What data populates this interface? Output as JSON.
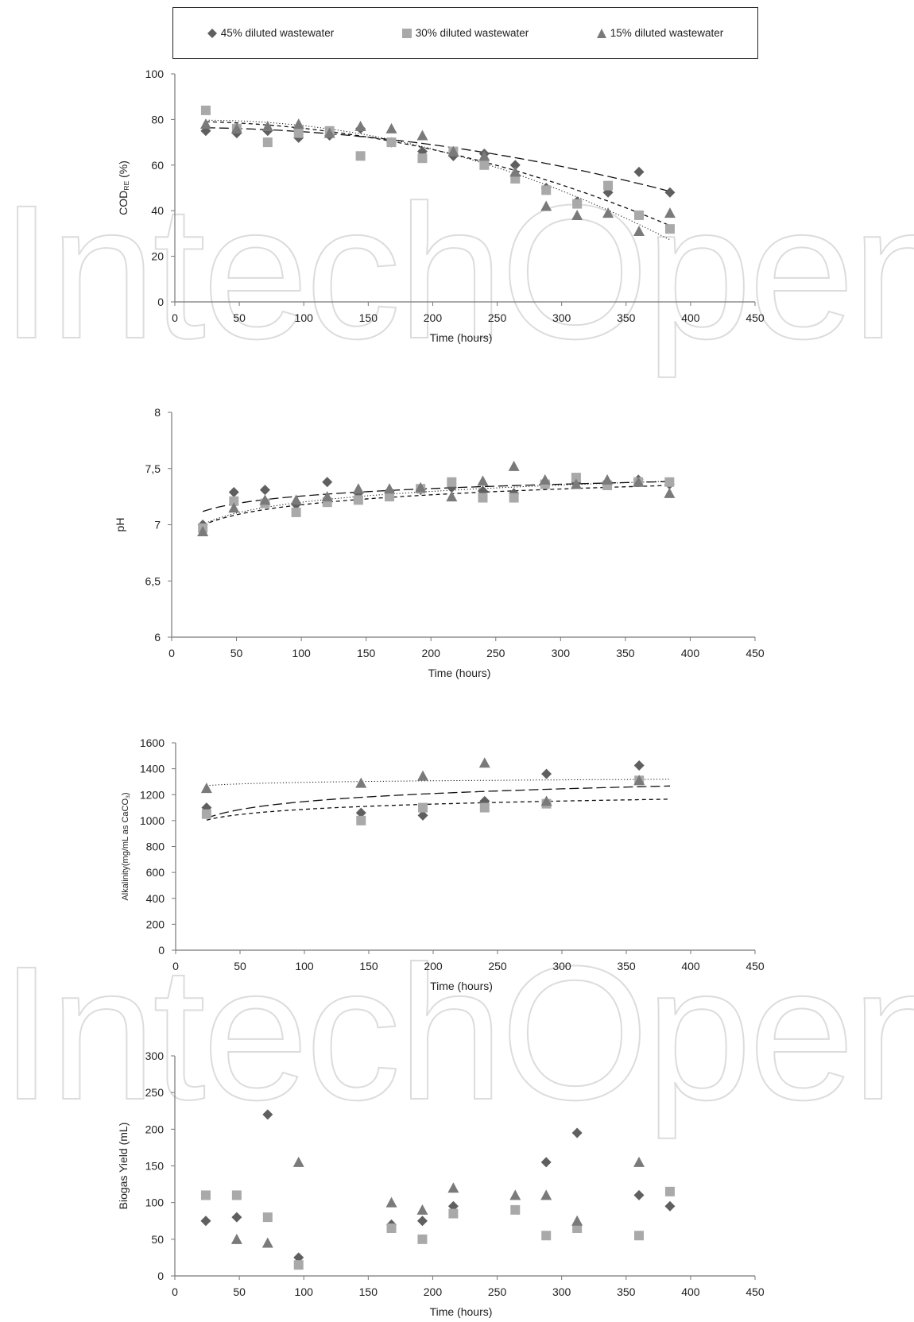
{
  "legend": {
    "items": [
      {
        "label": "45% diluted wastewater",
        "marker": "diamond",
        "color": "#5f5f5f"
      },
      {
        "label": "30% diluted wastewater",
        "marker": "square",
        "color": "#a9a9a9"
      },
      {
        "label": "15% diluted wastewater",
        "marker": "triangle",
        "color": "#7a7a7a"
      }
    ]
  },
  "watermark": "IntechOpen",
  "chart_data": [
    {
      "type": "scatter",
      "xlabel": "Time (hours)",
      "ylabel": "COD",
      "ylabel_sub": "RE",
      "ylabel_suffix": " (%)",
      "xlim": [
        0,
        450
      ],
      "ylim": [
        0,
        100
      ],
      "xticks": [
        0,
        50,
        100,
        150,
        200,
        250,
        300,
        350,
        400,
        450
      ],
      "yticks": [
        0,
        20,
        40,
        60,
        80,
        100
      ],
      "ytick_labels": [
        "0",
        "20",
        "40",
        "60",
        "80",
        "100"
      ],
      "series": [
        {
          "name": "45% diluted wastewater",
          "x": [
            24,
            48,
            72,
            96,
            120,
            144,
            168,
            192,
            216,
            240,
            264,
            288,
            312,
            336,
            360,
            384
          ],
          "y": [
            75,
            74,
            75,
            72,
            73,
            76,
            70,
            66,
            64,
            65,
            60,
            50,
            44,
            48,
            57,
            48
          ]
        },
        {
          "name": "30% diluted wastewater",
          "x": [
            24,
            48,
            72,
            96,
            120,
            144,
            168,
            192,
            216,
            240,
            264,
            288,
            312,
            336,
            360,
            384
          ],
          "y": [
            84,
            76,
            70,
            74,
            75,
            64,
            70,
            63,
            66,
            60,
            54,
            49,
            43,
            51,
            38,
            32
          ]
        },
        {
          "name": "15% diluted wastewater",
          "x": [
            24,
            48,
            72,
            96,
            120,
            144,
            168,
            192,
            216,
            240,
            264,
            288,
            312,
            336,
            360,
            384
          ],
          "y": [
            78,
            76,
            77,
            78,
            74,
            77,
            76,
            73,
            66,
            64,
            57,
            42,
            38,
            39,
            31,
            39
          ]
        }
      ],
      "trendlines": [
        {
          "series": "45% diluted wastewater",
          "style": "long-dash",
          "coef": [
            -0.00019,
            0.0,
            76.5
          ]
        },
        {
          "series": "30% diluted wastewater",
          "style": "short-dash",
          "coef": [
            -0.00031,
            0.0,
            79.2
          ]
        },
        {
          "series": "15% diluted wastewater",
          "style": "dotted",
          "coef": [
            -0.0004,
            0.0175,
            79.5
          ]
        }
      ]
    },
    {
      "type": "scatter",
      "xlabel": "Time (hours)",
      "ylabel": "pH",
      "xlim": [
        0,
        450
      ],
      "ylim": [
        6,
        8
      ],
      "xticks": [
        0,
        50,
        100,
        150,
        200,
        250,
        300,
        350,
        400,
        450
      ],
      "yticks": [
        6,
        6.5,
        7,
        7.5,
        8
      ],
      "ytick_labels": [
        "6",
        "6,5",
        "7",
        "7,5",
        "8"
      ],
      "series": [
        {
          "name": "45% diluted wastewater",
          "x": [
            24,
            48,
            72,
            96,
            120,
            144,
            168,
            192,
            216,
            240,
            264,
            288,
            312,
            336,
            360,
            384
          ],
          "y": [
            7.0,
            7.29,
            7.31,
            7.18,
            7.38,
            7.28,
            7.3,
            7.31,
            7.33,
            7.3,
            7.28,
            7.38,
            7.38,
            7.38,
            7.4,
            7.36
          ]
        },
        {
          "name": "30% diluted wastewater",
          "x": [
            24,
            48,
            72,
            96,
            120,
            144,
            168,
            192,
            216,
            240,
            264,
            288,
            312,
            336,
            360,
            384
          ],
          "y": [
            6.97,
            7.21,
            7.19,
            7.11,
            7.2,
            7.22,
            7.25,
            7.32,
            7.38,
            7.24,
            7.24,
            7.36,
            7.42,
            7.35,
            7.38,
            7.38
          ]
        },
        {
          "name": "15% diluted wastewater",
          "x": [
            24,
            48,
            72,
            96,
            120,
            144,
            168,
            192,
            216,
            240,
            264,
            288,
            312,
            336,
            360,
            384
          ],
          "y": [
            6.94,
            7.15,
            7.22,
            7.22,
            7.25,
            7.32,
            7.32,
            7.33,
            7.25,
            7.39,
            7.52,
            7.4,
            7.36,
            7.4,
            7.38,
            7.28
          ]
        }
      ],
      "trendlines": [
        {
          "series": "45% diluted wastewater",
          "style": "long-dash",
          "log": [
            0.096,
            6.813
          ]
        },
        {
          "series": "30% diluted wastewater",
          "style": "short-dash",
          "log": [
            0.128,
            6.588
          ]
        },
        {
          "series": "15% diluted wastewater",
          "style": "dotted",
          "log": [
            0.139,
            6.56
          ]
        }
      ]
    },
    {
      "type": "scatter",
      "xlabel": "Time (hours)",
      "ylabel": "Alkalinity(mg/mL as CaCO",
      "ylabel_sub": "3",
      "ylabel_suffix": ")",
      "xlim": [
        0,
        450
      ],
      "ylim": [
        0,
        1600
      ],
      "xticks": [
        0,
        50,
        100,
        150,
        200,
        250,
        300,
        350,
        400,
        450
      ],
      "yticks": [
        0,
        200,
        400,
        600,
        800,
        1000,
        1200,
        1400,
        1600
      ],
      "ytick_labels": [
        "0",
        "200",
        "400",
        "600",
        "800",
        "1000",
        "1200",
        "1400",
        "1600"
      ],
      "series": [
        {
          "name": "45% diluted wastewater",
          "x": [
            24,
            144,
            192,
            240,
            288,
            360
          ],
          "y": [
            1100,
            1060,
            1040,
            1150,
            1360,
            1425
          ]
        },
        {
          "name": "30% diluted wastewater",
          "x": [
            24,
            144,
            192,
            240,
            288,
            360
          ],
          "y": [
            1050,
            1000,
            1100,
            1100,
            1130,
            1310
          ]
        },
        {
          "name": "15% diluted wastewater",
          "x": [
            24,
            144,
            192,
            240,
            288,
            360
          ],
          "y": [
            1250,
            1290,
            1345,
            1445,
            1150,
            1310
          ]
        }
      ],
      "trendlines": [
        {
          "series": "45% diluted wastewater",
          "style": "long-dash",
          "log": [
            89.3,
            735.6
          ]
        },
        {
          "series": "30% diluted wastewater",
          "style": "short-dash",
          "log": [
            58.0,
            820.0
          ]
        },
        {
          "series": "15% diluted wastewater",
          "style": "dotted",
          "log": [
            17.4,
            1215.0
          ]
        }
      ]
    },
    {
      "type": "scatter",
      "xlabel": "Time (hours)",
      "ylabel": "Biogas Yield (mL)",
      "xlim": [
        0,
        450
      ],
      "ylim": [
        0,
        300
      ],
      "xticks": [
        0,
        50,
        100,
        150,
        200,
        250,
        300,
        350,
        400,
        450
      ],
      "yticks": [
        0,
        50,
        100,
        150,
        200,
        250,
        300
      ],
      "ytick_labels": [
        "0",
        "50",
        "100",
        "150",
        "200",
        "250",
        "300"
      ],
      "series": [
        {
          "name": "45% diluted wastewater",
          "x": [
            24,
            48,
            72,
            96,
            168,
            192,
            216,
            288,
            312,
            360,
            384
          ],
          "y": [
            75,
            80,
            220,
            25,
            70,
            75,
            95,
            155,
            195,
            110,
            95
          ]
        },
        {
          "name": "30% diluted wastewater",
          "x": [
            24,
            48,
            72,
            96,
            168,
            192,
            216,
            264,
            288,
            312,
            360,
            384
          ],
          "y": [
            110,
            110,
            80,
            15,
            65,
            50,
            85,
            90,
            55,
            65,
            55,
            115
          ]
        },
        {
          "name": "15% diluted wastewater",
          "x": [
            48,
            72,
            96,
            168,
            192,
            216,
            264,
            288,
            312,
            360
          ],
          "y": [
            50,
            45,
            155,
            100,
            90,
            120,
            110,
            110,
            75,
            155
          ]
        }
      ]
    }
  ]
}
